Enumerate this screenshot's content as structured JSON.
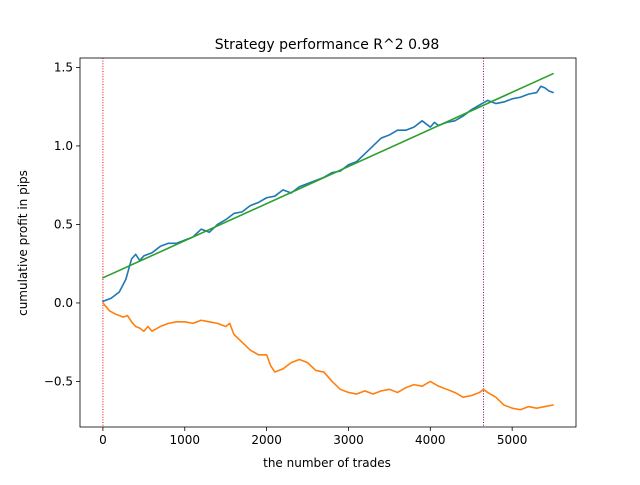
{
  "chart_data": {
    "type": "line",
    "title": "Strategy performance R^2 0.98",
    "xlabel": "the number of trades",
    "ylabel": "cumulative profit in pips",
    "xlim": [
      -280,
      5780
    ],
    "ylim": [
      -0.79,
      1.56
    ],
    "xticks": [
      {
        "value": 0,
        "label": "0"
      },
      {
        "value": 1000,
        "label": "1000"
      },
      {
        "value": 2000,
        "label": "2000"
      },
      {
        "value": 3000,
        "label": "3000"
      },
      {
        "value": 4000,
        "label": "4000"
      },
      {
        "value": 5000,
        "label": "5000"
      }
    ],
    "yticks": [
      {
        "value": -0.5,
        "label": "−0.5"
      },
      {
        "value": 0.0,
        "label": "0.0"
      },
      {
        "value": 0.5,
        "label": "0.5"
      },
      {
        "value": 1.0,
        "label": "1.0"
      },
      {
        "value": 1.5,
        "label": "1.5"
      }
    ],
    "grid": false,
    "legend": "none",
    "vlines": [
      {
        "x": 0,
        "color": "#ff0000",
        "style": "dotted"
      },
      {
        "x": 4650,
        "color": "#800080",
        "style": "dotted"
      }
    ],
    "series": [
      {
        "color": "#1f77b4",
        "x": [
          0,
          100,
          200,
          280,
          350,
          400,
          450,
          500,
          600,
          700,
          800,
          900,
          1000,
          1100,
          1200,
          1300,
          1400,
          1500,
          1600,
          1700,
          1800,
          1900,
          2000,
          2100,
          2200,
          2300,
          2400,
          2500,
          2600,
          2700,
          2800,
          2900,
          3000,
          3100,
          3200,
          3300,
          3400,
          3500,
          3600,
          3700,
          3800,
          3900,
          4000,
          4050,
          4100,
          4200,
          4300,
          4400,
          4500,
          4600,
          4700,
          4800,
          4900,
          5000,
          5100,
          5200,
          5300,
          5350,
          5400,
          5450,
          5500
        ],
        "y": [
          0.01,
          0.03,
          0.07,
          0.15,
          0.28,
          0.31,
          0.27,
          0.3,
          0.32,
          0.36,
          0.38,
          0.38,
          0.4,
          0.42,
          0.47,
          0.45,
          0.5,
          0.53,
          0.57,
          0.58,
          0.62,
          0.64,
          0.67,
          0.68,
          0.72,
          0.7,
          0.74,
          0.76,
          0.78,
          0.8,
          0.83,
          0.84,
          0.88,
          0.9,
          0.95,
          1.0,
          1.05,
          1.07,
          1.1,
          1.1,
          1.12,
          1.16,
          1.12,
          1.15,
          1.13,
          1.15,
          1.16,
          1.19,
          1.23,
          1.26,
          1.29,
          1.27,
          1.28,
          1.3,
          1.31,
          1.33,
          1.34,
          1.38,
          1.37,
          1.35,
          1.34
        ]
      },
      {
        "color": "#ff7f0e",
        "x": [
          0,
          80,
          150,
          250,
          300,
          350,
          400,
          450,
          500,
          550,
          600,
          700,
          800,
          900,
          1000,
          1100,
          1200,
          1300,
          1400,
          1500,
          1550,
          1600,
          1700,
          1800,
          1900,
          2000,
          2050,
          2100,
          2200,
          2300,
          2400,
          2450,
          2500,
          2600,
          2700,
          2800,
          2900,
          3000,
          3100,
          3200,
          3300,
          3400,
          3500,
          3600,
          3700,
          3800,
          3900,
          4000,
          4100,
          4200,
          4300,
          4400,
          4500,
          4600,
          4650,
          4700,
          4800,
          4900,
          5000,
          5100,
          5200,
          5300,
          5400,
          5500
        ],
        "y": [
          0.0,
          -0.05,
          -0.07,
          -0.09,
          -0.08,
          -0.12,
          -0.15,
          -0.16,
          -0.18,
          -0.15,
          -0.18,
          -0.15,
          -0.13,
          -0.12,
          -0.12,
          -0.13,
          -0.11,
          -0.12,
          -0.13,
          -0.15,
          -0.13,
          -0.2,
          -0.25,
          -0.3,
          -0.33,
          -0.33,
          -0.4,
          -0.44,
          -0.42,
          -0.38,
          -0.36,
          -0.37,
          -0.38,
          -0.43,
          -0.44,
          -0.5,
          -0.55,
          -0.57,
          -0.58,
          -0.56,
          -0.58,
          -0.56,
          -0.55,
          -0.57,
          -0.54,
          -0.52,
          -0.53,
          -0.5,
          -0.53,
          -0.55,
          -0.57,
          -0.6,
          -0.59,
          -0.57,
          -0.55,
          -0.57,
          -0.6,
          -0.65,
          -0.67,
          -0.68,
          -0.66,
          -0.67,
          -0.66,
          -0.65
        ]
      },
      {
        "color": "#2ca02c",
        "x": [
          0,
          5500
        ],
        "y": [
          0.16,
          1.46
        ]
      }
    ]
  }
}
